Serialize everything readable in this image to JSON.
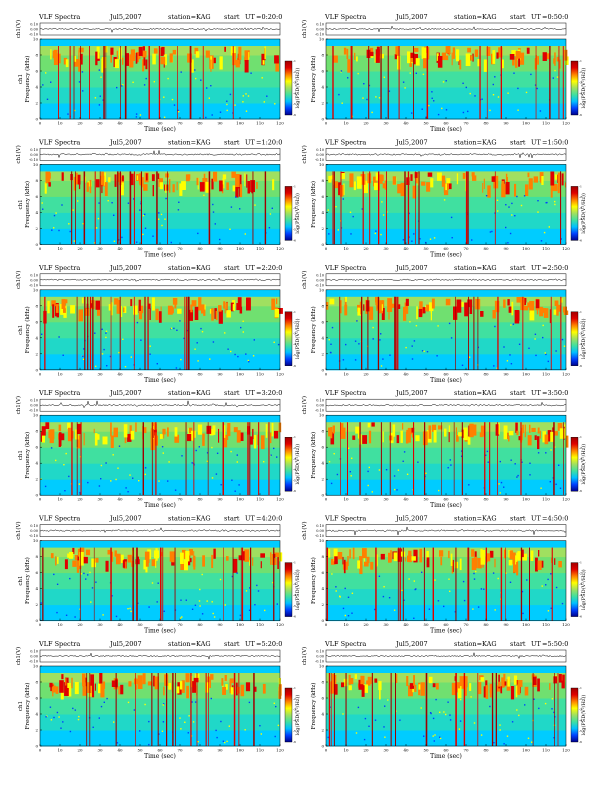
{
  "page": {
    "title": "VLF Spectra"
  },
  "common": {
    "header_prefix": "VLF Spectra",
    "station_label": "station=KAG",
    "start_label": "start",
    "ut_label": "UT",
    "wave_ylabel": "ch1(V)",
    "wave_ticks": [
      "0.10",
      "0.00",
      "-0.10"
    ],
    "freq_ylabel": "Frequency (kHz)",
    "freq_ylabel_left": "ch1",
    "freq_ticks": [
      "0",
      "2",
      "4",
      "6",
      "8",
      "10"
    ],
    "x_ticks": [
      "0",
      "10",
      "20",
      "30",
      "40",
      "50",
      "60",
      "70",
      "80",
      "90",
      "100",
      "110",
      "120"
    ],
    "xlabel": "Time (sec)",
    "colorbar_label": "log(PSD(V²/Hz))",
    "colorbar_ticks": [
      "-1",
      "-2",
      "-3",
      "-4",
      "-5",
      "-6"
    ],
    "colors": {
      "scale": [
        "#00008b",
        "#0040ff",
        "#00c0ff",
        "#40e0a0",
        "#a0e060",
        "#ffff00",
        "#ff8000",
        "#e00000",
        "#a00000"
      ],
      "noise_top": "#00ccff"
    }
  },
  "panels": [
    {
      "date": "Jul5,2007",
      "station": "station=KAG",
      "start_time": "0:20:0"
    },
    {
      "date": "Jul5,2007",
      "station": "station=KAG",
      "start_time": "0:50:0"
    },
    {
      "date": "Jul5,2007",
      "station": "station=KAG",
      "start_time": "1:20:0"
    },
    {
      "date": "Jul5,2007",
      "station": "station=KAG",
      "start_time": "1:50:0"
    },
    {
      "date": "Jul5,2007",
      "station": "station=KAG",
      "start_time": "2:20:0"
    },
    {
      "date": "Jul5,2007",
      "station": "station=KAG",
      "start_time": "2:50:0"
    },
    {
      "date": "Jul5,2007",
      "station": "station=KAG",
      "start_time": "3:20:0"
    },
    {
      "date": "Jul5,2007",
      "station": "station=KAG",
      "start_time": "3:50:0"
    },
    {
      "date": "Jul5,2007",
      "station": "station=KAG",
      "start_time": "4:20:0"
    },
    {
      "date": "Jul5,2007",
      "station": "station=KAG",
      "start_time": "4:50:0"
    },
    {
      "date": "Jul5,2007",
      "station": "station=KAG",
      "start_time": "5:20:0"
    },
    {
      "date": "Jul5,2007",
      "station": "station=KAG",
      "start_time": "5:50:0"
    }
  ],
  "chart_data": {
    "type": "heatmap",
    "title": "VLF Spectra",
    "xlabel": "Time (sec)",
    "ylabel": "Frequency (kHz)",
    "xlim": [
      0,
      120
    ],
    "ylim": [
      0,
      10
    ],
    "waveform_ylim": [
      -0.1,
      0.1
    ],
    "colorbar_label": "log(PSD(V²/Hz))",
    "colorbar_ticks": [
      -1,
      -2,
      -3,
      -4,
      -5,
      -6
    ],
    "grid": false,
    "legend": "right",
    "series": [
      {
        "name": "0:20:0"
      },
      {
        "name": "0:50:0"
      },
      {
        "name": "1:20:0"
      },
      {
        "name": "1:50:0"
      },
      {
        "name": "2:20:0"
      },
      {
        "name": "2:50:0"
      },
      {
        "name": "3:20:0"
      },
      {
        "name": "3:50:0"
      },
      {
        "name": "4:20:0"
      },
      {
        "name": "4:50:0"
      },
      {
        "name": "5:20:0"
      },
      {
        "name": "5:50:0"
      }
    ]
  }
}
